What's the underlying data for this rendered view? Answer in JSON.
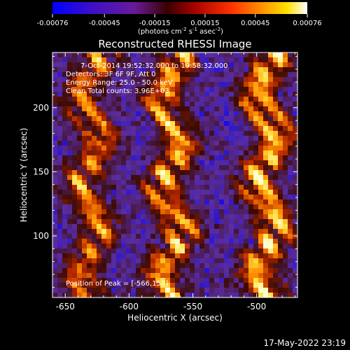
{
  "chart_data": {
    "type": "heatmap",
    "title": "Reconstructed RHESSI Image",
    "xlabel": "Heliocentric X (arcsec)",
    "ylabel": "Heliocentric Y (arcsec)",
    "xlim": [
      -660,
      -468
    ],
    "ylim": [
      52,
      243
    ],
    "xticks": [
      -650,
      -600,
      -550,
      -500
    ],
    "xtick_labels": [
      "-650",
      "-600",
      "-550",
      "-500"
    ],
    "yticks": [
      100,
      150,
      200
    ],
    "ytick_labels": [
      "100",
      "150",
      "200"
    ],
    "colorbar": {
      "min": -0.00076,
      "max": 0.00076,
      "ticks": [
        -0.00076,
        -0.00045,
        -0.00015,
        0.00015,
        0.00045,
        0.00076
      ],
      "tick_labels": [
        "-0.00076",
        "-0.00045",
        "-0.00015",
        "0.00015",
        "0.00045",
        "0.00076"
      ],
      "units_label": "(photons cm",
      "units_exp1": "-2",
      "units_mid": " s",
      "units_exp2": "-1",
      "units_mid2": " asec",
      "units_exp3": "-2",
      "units_end": ")"
    },
    "colormap": [
      "#0000ff",
      "#5a2da0",
      "#3c0a00",
      "#b42800",
      "#ff8c00",
      "#ffe040",
      "#ffffd0"
    ],
    "bands": [
      {
        "x_center": -630,
        "intensity": 0.7
      },
      {
        "x_center": -567,
        "intensity": 0.85
      },
      {
        "x_center": -492,
        "intensity": 0.95
      }
    ],
    "peak": [
      -566,
      157
    ]
  },
  "annotations": {
    "time_range": "7-Oct-2014 19:52:32.000 to 19:58:32.000",
    "detectors": "Detectors: 3F 6F 9F, Att 0",
    "energy": "Energy Range: 25.0 - 50.0 keV",
    "clean": "Clean     Total counts: 3.96E+03",
    "peak_label": "Position of Peak = [-566,157]"
  },
  "footer_timestamp": "17-May-2022 23:19"
}
